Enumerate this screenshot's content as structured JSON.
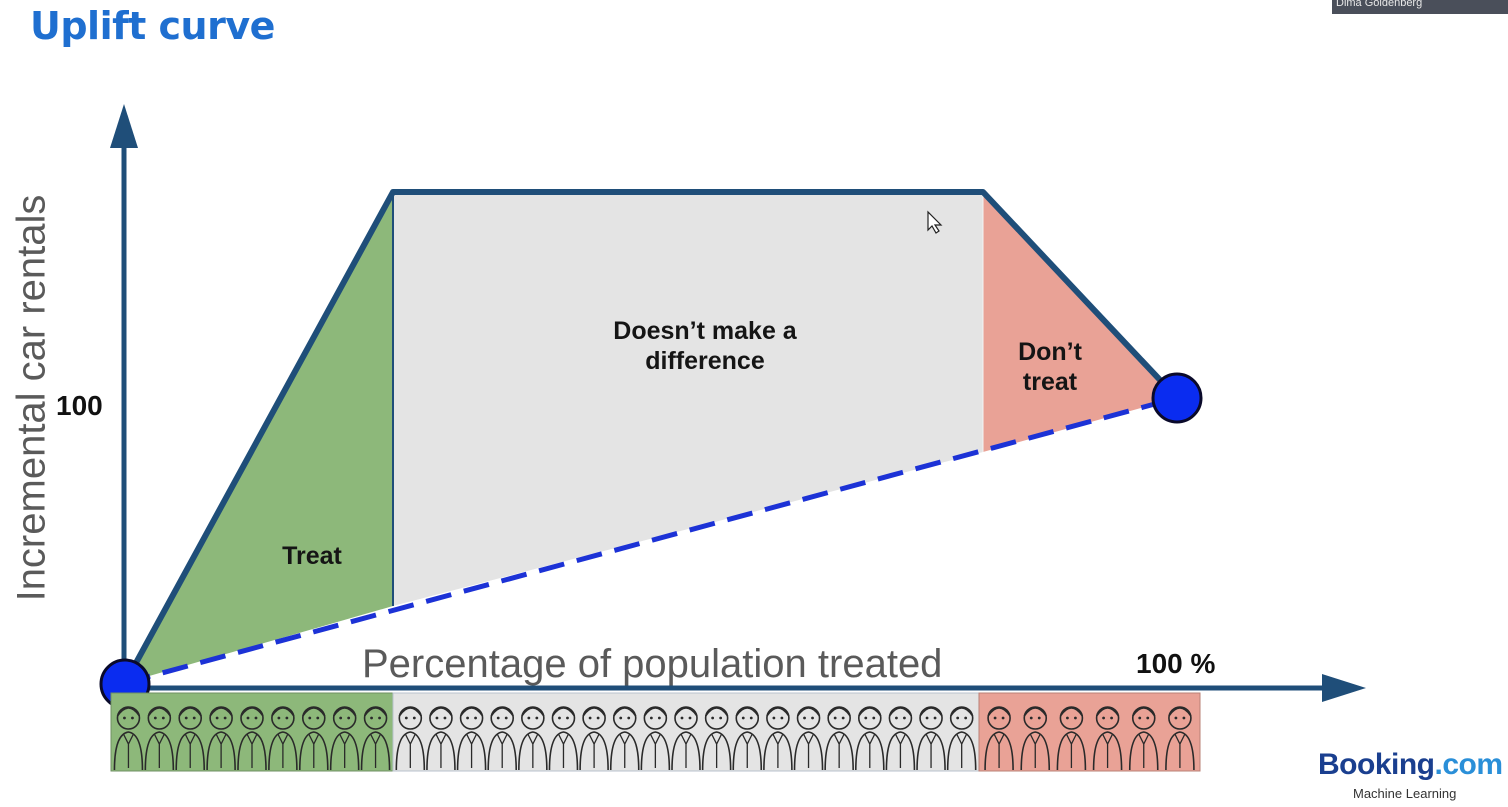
{
  "slide": {
    "title": "Uplift curve"
  },
  "axes": {
    "y_label": "Incremental car rentals",
    "x_label": "Percentage of population treated",
    "y_tick": "100",
    "x_tick": "100 %"
  },
  "regions": {
    "treat": "Treat",
    "no_difference": "Doesn’t make a difference",
    "dont_treat": "Don’t treat"
  },
  "colors": {
    "title": "#1f6fd0",
    "axis": "#1f4e79",
    "treat_fill": "#8db87a",
    "no_difference_fill": "#e4e4e4",
    "dont_treat_fill": "#e9a296",
    "random_line": "#1c32d6",
    "endpoint": "#0a2cf0"
  },
  "population_strip": {
    "icon": "person-icon",
    "segments": [
      {
        "group": "treat",
        "count": 9
      },
      {
        "group": "no_difference",
        "count": 19
      },
      {
        "group": "dont_treat",
        "count": 6
      }
    ]
  },
  "webcam": {
    "name": "Dima Goldenberg"
  },
  "branding": {
    "logo_main": "Booking",
    "logo_suffix": ".com",
    "subtitle": "Machine Learning"
  }
}
